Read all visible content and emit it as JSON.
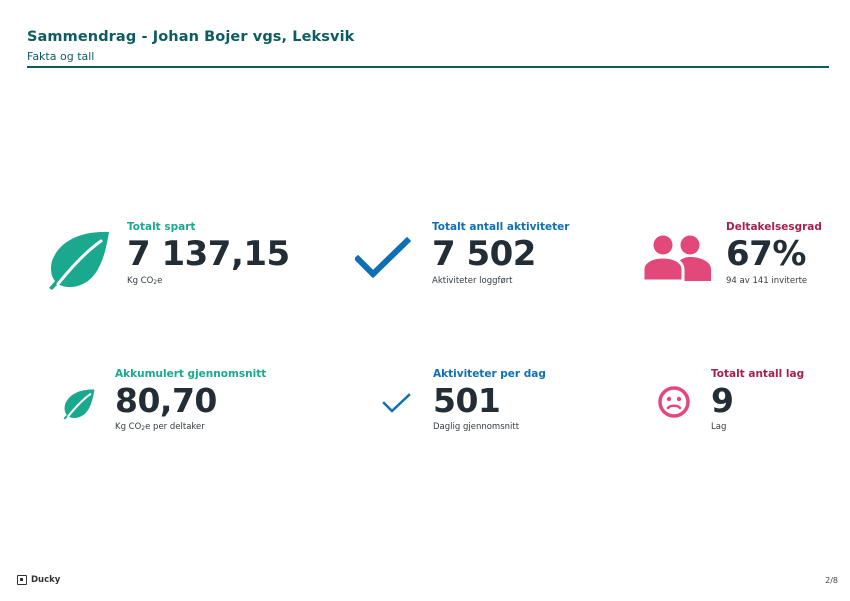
{
  "header": {
    "title": "Sammendrag - Johan Bojer vgs, Leksvik",
    "subtitle": "Fakta og tall"
  },
  "stats": {
    "total_saved": {
      "label": "Totalt spart",
      "value": "7 137,15",
      "note_prefix": "Kg CO",
      "note_sub": "2",
      "note_suffix": "e",
      "icon": "leaf-icon"
    },
    "total_activities": {
      "label": "Totalt antall aktiviteter",
      "value": "7 502",
      "note": "Aktiviteter loggført",
      "icon": "checkmark-icon"
    },
    "participation": {
      "label": "Deltakelsesgrad",
      "value": "67%",
      "note": "94 av 141 inviterte",
      "icon": "people-icon"
    },
    "avg_accumulated": {
      "label": "Akkumulert gjennomsnitt",
      "value": "80,70",
      "note_prefix": "Kg CO",
      "note_sub": "2",
      "note_suffix": "e per deltaker",
      "icon": "leaf-icon"
    },
    "activities_per_day": {
      "label": "Aktiviteter per dag",
      "value": "501",
      "note": "Daglig gjennomsnitt",
      "icon": "checkmark-icon"
    },
    "total_teams": {
      "label": "Totalt antall lag",
      "value": "9",
      "note": "Lag",
      "icon": "sad-face-icon"
    }
  },
  "footer": {
    "brand": "Ducky",
    "page": "2/8"
  },
  "colors": {
    "header": "#0e5c5f",
    "green": "#1aa88e",
    "blue": "#0f6fb5",
    "pink_label": "#a5204f",
    "pink_icon": "#e2497a",
    "value_text": "#222d36"
  }
}
